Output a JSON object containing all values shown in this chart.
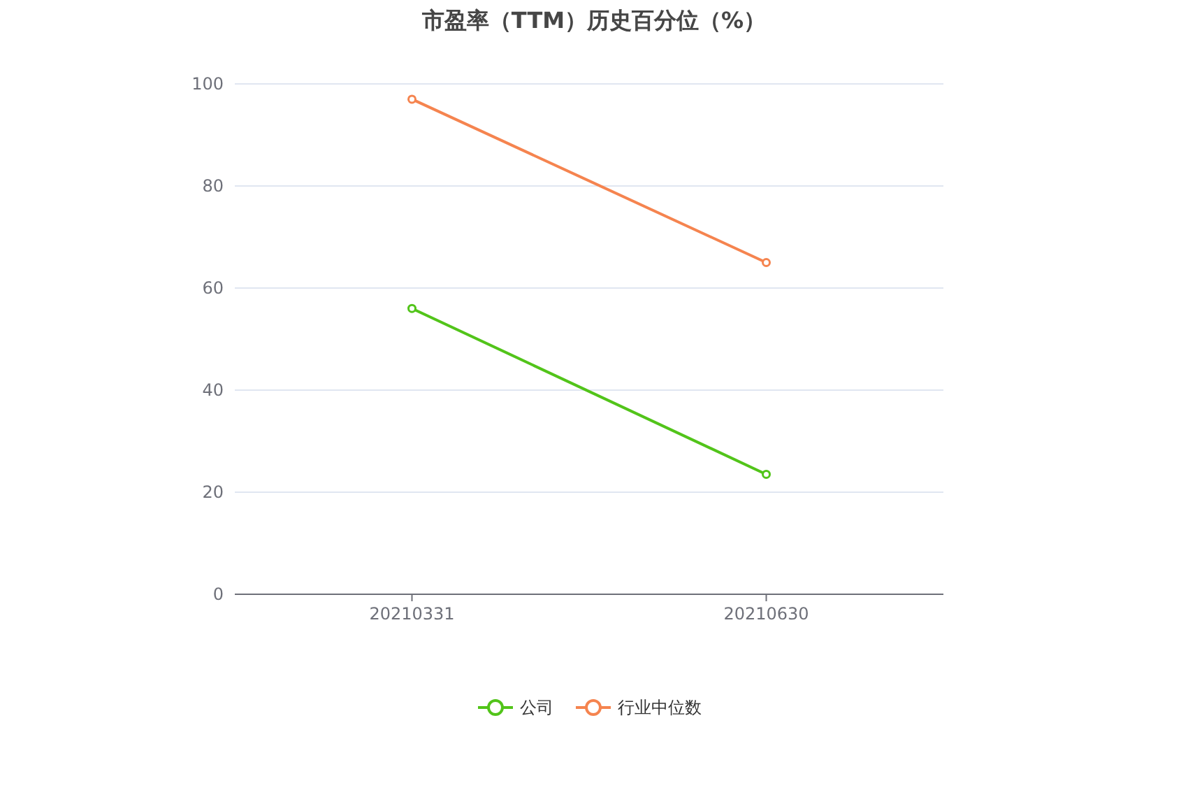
{
  "chart_data": {
    "type": "line",
    "title": "市盈率（TTM）历史百分位（%）",
    "categories": [
      "20210331",
      "20210630"
    ],
    "series": [
      {
        "name": "公司",
        "color": "#52c41a",
        "values": [
          56,
          23.5
        ]
      },
      {
        "name": "行业中位数",
        "color": "#f5844f",
        "values": [
          97,
          65
        ]
      }
    ],
    "ylim": [
      0,
      100
    ],
    "yticks": [
      0,
      20,
      40,
      60,
      80,
      100
    ],
    "grid": "y",
    "legend": "bottom",
    "marker": "circle"
  }
}
